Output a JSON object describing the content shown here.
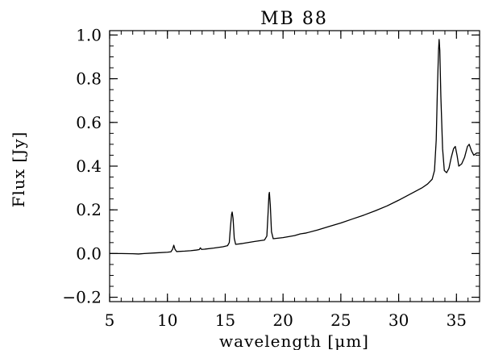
{
  "chart_data": {
    "type": "line",
    "title": "MB 88",
    "xlabel": "wavelength [μm]",
    "ylabel": "Flux [Jy]",
    "xlim": [
      5,
      37
    ],
    "ylim": [
      -0.22,
      1.02
    ],
    "xticks": [
      5,
      10,
      15,
      20,
      25,
      30,
      35
    ],
    "yticks": [
      -0.2,
      0.0,
      0.2,
      0.4,
      0.6,
      0.8,
      1.0
    ],
    "xtick_labels": [
      "5",
      "10",
      "15",
      "20",
      "25",
      "30",
      "35"
    ],
    "ytick_labels": [
      "−0.2",
      "0.0",
      "0.2",
      "0.4",
      "0.6",
      "0.8",
      "1.0"
    ],
    "grid": false,
    "series": [
      {
        "color": "#000000",
        "points": [
          [
            5.0,
            0.0
          ],
          [
            6.0,
            0.0
          ],
          [
            7.0,
            -0.001
          ],
          [
            7.5,
            -0.002
          ],
          [
            8.0,
            0.0
          ],
          [
            9.0,
            0.003
          ],
          [
            10.0,
            0.006
          ],
          [
            10.3,
            0.008
          ],
          [
            10.45,
            0.02
          ],
          [
            10.55,
            0.038
          ],
          [
            10.65,
            0.02
          ],
          [
            10.8,
            0.009
          ],
          [
            11.5,
            0.011
          ],
          [
            12.0,
            0.013
          ],
          [
            12.5,
            0.016
          ],
          [
            12.75,
            0.018
          ],
          [
            12.85,
            0.026
          ],
          [
            12.95,
            0.019
          ],
          [
            13.2,
            0.02
          ],
          [
            14.0,
            0.025
          ],
          [
            14.8,
            0.031
          ],
          [
            15.2,
            0.036
          ],
          [
            15.35,
            0.05
          ],
          [
            15.45,
            0.12
          ],
          [
            15.55,
            0.18
          ],
          [
            15.6,
            0.19
          ],
          [
            15.68,
            0.16
          ],
          [
            15.78,
            0.07
          ],
          [
            15.9,
            0.042
          ],
          [
            16.5,
            0.046
          ],
          [
            17.5,
            0.055
          ],
          [
            18.4,
            0.062
          ],
          [
            18.6,
            0.08
          ],
          [
            18.7,
            0.18
          ],
          [
            18.78,
            0.27
          ],
          [
            18.82,
            0.28
          ],
          [
            18.9,
            0.22
          ],
          [
            19.0,
            0.1
          ],
          [
            19.15,
            0.068
          ],
          [
            20.0,
            0.073
          ],
          [
            21.0,
            0.082
          ],
          [
            21.5,
            0.09
          ],
          [
            22.0,
            0.094
          ],
          [
            23.0,
            0.108
          ],
          [
            24.0,
            0.124
          ],
          [
            25.0,
            0.14
          ],
          [
            26.0,
            0.158
          ],
          [
            27.0,
            0.176
          ],
          [
            28.0,
            0.196
          ],
          [
            29.0,
            0.218
          ],
          [
            30.0,
            0.244
          ],
          [
            31.0,
            0.272
          ],
          [
            32.0,
            0.3
          ],
          [
            32.5,
            0.318
          ],
          [
            32.9,
            0.34
          ],
          [
            33.1,
            0.38
          ],
          [
            33.25,
            0.52
          ],
          [
            33.35,
            0.75
          ],
          [
            33.45,
            0.93
          ],
          [
            33.5,
            0.98
          ],
          [
            33.56,
            0.93
          ],
          [
            33.65,
            0.72
          ],
          [
            33.8,
            0.48
          ],
          [
            33.95,
            0.38
          ],
          [
            34.15,
            0.37
          ],
          [
            34.35,
            0.39
          ],
          [
            34.55,
            0.44
          ],
          [
            34.75,
            0.48
          ],
          [
            34.9,
            0.49
          ],
          [
            35.05,
            0.45
          ],
          [
            35.2,
            0.4
          ],
          [
            35.45,
            0.41
          ],
          [
            35.7,
            0.44
          ],
          [
            35.95,
            0.49
          ],
          [
            36.1,
            0.5
          ],
          [
            36.3,
            0.47
          ],
          [
            36.5,
            0.45
          ],
          [
            36.75,
            0.46
          ],
          [
            37.0,
            0.46
          ]
        ]
      }
    ]
  }
}
